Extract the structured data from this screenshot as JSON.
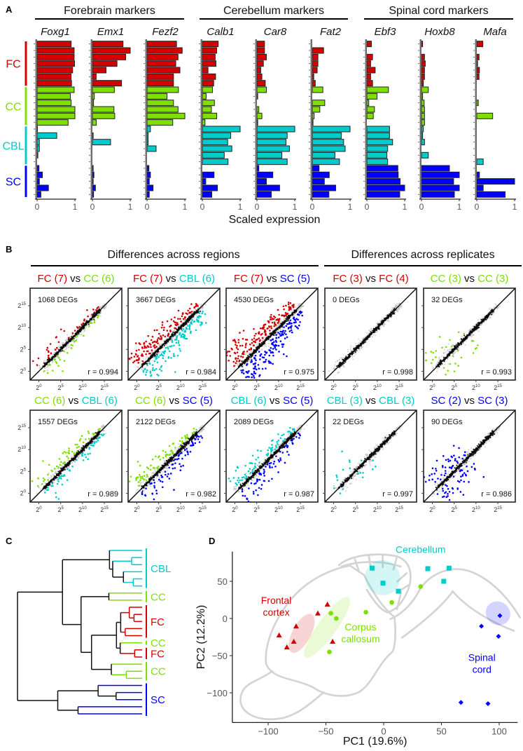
{
  "panel_labels": {
    "a": "A",
    "b": "B",
    "c": "C",
    "d": "D"
  },
  "colors": {
    "FC": "#d40000",
    "CC": "#7ee000",
    "CBL": "#00cccc",
    "SC": "#0000ff"
  },
  "chart_data": [
    {
      "type": "bar",
      "panel": "A",
      "xlabel": "Scaled expression",
      "xlim": [
        0,
        1
      ],
      "xticks": [
        "0",
        "1"
      ],
      "marker_groups": [
        {
          "title": "Forebrain markers",
          "genes": [
            0,
            1,
            2
          ]
        },
        {
          "title": "Cerebellum markers",
          "genes": [
            3,
            4,
            5
          ]
        },
        {
          "title": "Spinal cord markers",
          "genes": [
            6,
            7,
            8
          ]
        }
      ],
      "row_groups": [
        {
          "label": "FC",
          "n": 7
        },
        {
          "label": "CC",
          "n": 6
        },
        {
          "label": "CBL",
          "n": 6
        },
        {
          "label": "SC",
          "n": 5
        }
      ],
      "genes": [
        {
          "name": "Foxg1",
          "values": [
            0.9,
            0.98,
            0.98,
            0.99,
            0.94,
            0.9,
            0.91,
            0.98,
            0.88,
            0.9,
            1.0,
            1.0,
            0.82,
            0.01,
            0.52,
            0.06,
            0.06,
            0.02,
            0.0,
            0.05,
            0.14,
            0.06,
            0.3,
            0.1
          ]
        },
        {
          "name": "Emx1",
          "values": [
            0.81,
            1.0,
            0.88,
            0.65,
            0.36,
            0.1,
            0.77,
            0.58,
            0.05,
            0.03,
            0.57,
            0.59,
            0.1,
            0.0,
            0.02,
            0.48,
            0.0,
            0.0,
            0.0,
            0.02,
            0.04,
            0.02,
            0.08,
            0.03
          ]
        },
        {
          "name": "Fezf2",
          "values": [
            0.78,
            0.93,
            0.82,
            0.76,
            0.87,
            0.7,
            0.7,
            0.83,
            0.53,
            0.7,
            0.82,
            1.0,
            0.68,
            0.09,
            0.03,
            0.03,
            0.24,
            0.0,
            0.0,
            0.05,
            0.09,
            0.06,
            0.16,
            0.06
          ]
        },
        {
          "name": "Calb1",
          "values": [
            0.42,
            0.38,
            0.34,
            0.36,
            0.15,
            0.35,
            0.3,
            0.27,
            0.1,
            0.32,
            0.24,
            0.38,
            0.07,
            1.0,
            0.75,
            0.67,
            0.78,
            0.58,
            0.68,
            0.0,
            0.31,
            0.09,
            0.4,
            0.25
          ]
        },
        {
          "name": "Car8",
          "values": [
            0.2,
            0.2,
            0.25,
            0.17,
            0.1,
            0.13,
            0.22,
            0.25,
            0.02,
            0.0,
            0.05,
            0.13,
            0.02,
            1.0,
            0.8,
            0.77,
            0.86,
            0.66,
            0.8,
            0.05,
            0.42,
            0.25,
            0.6,
            0.38
          ]
        },
        {
          "name": "Fat2",
          "values": [
            0.0,
            0.3,
            0.15,
            0.15,
            0.13,
            0.04,
            0.08,
            0.28,
            0.0,
            0.33,
            0.2,
            0.05,
            0.02,
            1.0,
            0.77,
            0.83,
            0.87,
            0.6,
            0.72,
            0.18,
            0.45,
            0.32,
            0.62,
            0.44
          ]
        },
        {
          "name": "Ebf3",
          "values": [
            0.12,
            0.0,
            0.15,
            0.1,
            0.22,
            0.1,
            0.15,
            0.57,
            0.27,
            0.05,
            0.2,
            0.17,
            0.0,
            0.6,
            0.6,
            0.68,
            0.55,
            0.53,
            0.55,
            0.82,
            0.83,
            0.88,
            1.0,
            0.87
          ]
        },
        {
          "name": "Hoxb8",
          "values": [
            0.03,
            0.0,
            0.08,
            0.1,
            0.08,
            0.08,
            0.05,
            0.18,
            0.03,
            0.07,
            0.08,
            0.08,
            0.08,
            0.05,
            0.03,
            0.08,
            0.0,
            0.18,
            0.0,
            0.74,
            1.0,
            0.85,
            1.0,
            0.87
          ]
        },
        {
          "name": "Mafa",
          "values": [
            0.16,
            0.0,
            0.06,
            0.02,
            0.07,
            0.06,
            0.0,
            0.0,
            0.0,
            0.04,
            0.0,
            0.42,
            0.0,
            0.0,
            0.0,
            0.0,
            0.0,
            0.0,
            0.17,
            0.0,
            0.07,
            1.0,
            0.17,
            0.75
          ]
        }
      ]
    },
    {
      "type": "scatter",
      "panel": "B",
      "section_titles": [
        "Differences across regions",
        "Differences across replicates"
      ],
      "tick_base": "2",
      "tick_exponents": [
        "0",
        "5",
        "10",
        "15"
      ],
      "axis_range_log2": [
        -2,
        19
      ],
      "vs_label": " vs ",
      "comparisons": [
        {
          "a": "FC",
          "a_label": "FC (7)",
          "b": "CC",
          "b_label": "CC (6)",
          "degs": "1068 DEGs",
          "n_degs": 1068,
          "r": "r = 0.994",
          "kind": "regions"
        },
        {
          "a": "FC",
          "a_label": "FC (7)",
          "b": "CBL",
          "b_label": "CBL (6)",
          "degs": "3667 DEGs",
          "n_degs": 3667,
          "r": "r = 0.984",
          "kind": "regions"
        },
        {
          "a": "FC",
          "a_label": "FC (7)",
          "b": "SC",
          "b_label": "SC (5)",
          "degs": "4530 DEGs",
          "n_degs": 4530,
          "r": "r = 0.975",
          "kind": "regions"
        },
        {
          "a": "FC",
          "a_label": "FC (3)",
          "b": "FC",
          "b_label": "FC (4)",
          "degs": "0 DEGs",
          "n_degs": 0,
          "r": "r = 0.998",
          "kind": "replicates"
        },
        {
          "a": "CC",
          "a_label": "CC (3)",
          "b": "CC",
          "b_label": "CC (3)",
          "degs": "32 DEGs",
          "n_degs": 32,
          "r": "r = 0.993",
          "kind": "replicates"
        },
        {
          "a": "CC",
          "a_label": "CC (6)",
          "b": "CBL",
          "b_label": "CBL (6)",
          "degs": "1557 DEGs",
          "n_degs": 1557,
          "r": "r = 0.989",
          "kind": "regions"
        },
        {
          "a": "CC",
          "a_label": "CC (6)",
          "b": "SC",
          "b_label": "SC (5)",
          "degs": "2122 DEGs",
          "n_degs": 2122,
          "r": "r = 0.982",
          "kind": "regions"
        },
        {
          "a": "CBL",
          "a_label": "CBL (6)",
          "b": "SC",
          "b_label": "SC (5)",
          "degs": "2089 DEGs",
          "n_degs": 2089,
          "r": "r = 0.987",
          "kind": "regions"
        },
        {
          "a": "CBL",
          "a_label": "CBL (3)",
          "b": "CBL",
          "b_label": "CBL (3)",
          "degs": "22 DEGs",
          "n_degs": 22,
          "r": "r = 0.997",
          "kind": "replicates"
        },
        {
          "a": "SC",
          "a_label": "SC (2)",
          "b": "SC",
          "b_label": "SC (3)",
          "degs": "90 DEGs",
          "n_degs": 90,
          "r": "r = 0.986",
          "kind": "replicates"
        }
      ]
    },
    {
      "type": "dendrogram",
      "panel": "C",
      "tree": [
        1.0,
        [
          0.639,
          [
            0.262,
            "CBL",
            [
              0.236,
              [
                0.084,
                "CBL",
                "CBL"
              ],
              [
                0.15,
                "CBL",
                [
                  0.071,
                  "CBL",
                  "CBL"
                ]
              ]
            ]
          ],
          [
            0.49,
            [
              0.267,
              "CC",
              "CC"
            ],
            [
              0.406,
              [
                0.206,
                [
                  0.172,
                  [
                    0.103,
                    "FC",
                    [
                      0.065,
                      "FC",
                      "FC"
                    ]
                  ],
                  [
                    0.136,
                    "FC",
                    "FC"
                  ]
                ],
                [
                  0.176,
                  "CC",
                  [
                    0.06,
                    "FC",
                    "FC"
                  ]
                ]
              ],
              [
                0.247,
                "CC",
                [
                  0.127,
                  "CC",
                  "CC"
                ]
              ]
            ]
          ]
        ],
        [
          0.677,
          [
            0.353,
            "SC",
            [
              0.209,
              "SC",
              "SC"
            ]
          ],
          [
            0.514,
            "SC",
            "SC"
          ]
        ]
      ],
      "cluster_labels": [
        {
          "label": "CBL",
          "group": "CBL",
          "leaves": [
            0,
            5
          ]
        },
        {
          "label": "CC",
          "group": "CC",
          "leaves": [
            6,
            7
          ]
        },
        {
          "label": "FC",
          "group": "FC",
          "leaves": [
            8,
            12
          ]
        },
        {
          "label": "CC",
          "group": "CC",
          "leaves": [
            13,
            13
          ]
        },
        {
          "label": "FC",
          "group": "FC",
          "leaves": [
            14,
            15
          ]
        },
        {
          "label": "CC",
          "group": "CC",
          "leaves": [
            16,
            18
          ]
        },
        {
          "label": "SC",
          "group": "SC",
          "leaves": [
            19,
            23
          ]
        }
      ]
    },
    {
      "type": "scatter",
      "panel": "D",
      "xlabel": "PC1 (19.6%)",
      "ylabel": "PC2 (12.2%)",
      "xlim": [
        -131,
        116
      ],
      "ylim": [
        -140,
        90
      ],
      "xticks": [
        -100,
        -50,
        0,
        50,
        100
      ],
      "yticks": [
        -100,
        -50,
        0,
        50
      ],
      "xtick_labels": [
        "−100",
        "−50",
        "0",
        "50",
        "100"
      ],
      "ytick_labels": [
        "−100",
        "−50",
        "0",
        "50"
      ],
      "region_labels": [
        {
          "group": "FC",
          "lines": [
            "Frontal",
            "cortex"
          ],
          "pc1": -93,
          "pc2": 20
        },
        {
          "group": "CC",
          "lines": [
            "Corpus",
            "callosum"
          ],
          "pc1": -20,
          "pc2": -16
        },
        {
          "group": "CBL",
          "lines": [
            "Cerebellum"
          ],
          "pc1": 32,
          "pc2": 88
        },
        {
          "group": "SC",
          "lines": [
            "Spinal",
            "cord"
          ],
          "pc1": 85,
          "pc2": -57
        }
      ],
      "ellipses": [
        {
          "group": "FC",
          "pc1": -71,
          "pc2": -20,
          "r1": 8,
          "r2": 29,
          "angle": 28
        },
        {
          "group": "CC",
          "pc1": -49,
          "pc2": -12,
          "r1": 8,
          "r2": 50,
          "angle": 36
        },
        {
          "group": "CBL",
          "pc1": -1,
          "pc2": 55,
          "r1": 15,
          "r2": 24,
          "angle": -50
        },
        {
          "group": "SC",
          "pc1": 99,
          "pc2": 7,
          "r1": 10,
          "r2": 17,
          "angle": -55
        }
      ],
      "points": [
        {
          "group": "FC",
          "marker": "triangle",
          "pc1": -48.7,
          "pc2": 19
        },
        {
          "group": "FC",
          "marker": "triangle",
          "pc1": -57,
          "pc2": 7
        },
        {
          "group": "FC",
          "marker": "triangle",
          "pc1": -75.8,
          "pc2": -10.4
        },
        {
          "group": "FC",
          "marker": "triangle",
          "pc1": -90.5,
          "pc2": -22.5
        },
        {
          "group": "FC",
          "marker": "triangle",
          "pc1": -77.8,
          "pc2": -31
        },
        {
          "group": "FC",
          "marker": "triangle",
          "pc1": -83.8,
          "pc2": -38.6
        },
        {
          "group": "FC",
          "marker": "triangle",
          "pc1": -44.2,
          "pc2": -31
        },
        {
          "group": "CC",
          "marker": "circle",
          "pc1": -45.7,
          "pc2": 7
        },
        {
          "group": "CC",
          "marker": "circle",
          "pc1": -41,
          "pc2": 0
        },
        {
          "group": "CC",
          "marker": "circle",
          "pc1": -15.4,
          "pc2": 8.5
        },
        {
          "group": "CC",
          "marker": "circle",
          "pc1": 7,
          "pc2": 21.5
        },
        {
          "group": "CC",
          "marker": "circle",
          "pc1": 32,
          "pc2": 43
        },
        {
          "group": "CC",
          "marker": "circle",
          "pc1": -47,
          "pc2": -45
        },
        {
          "group": "CBL",
          "marker": "square",
          "pc1": -10,
          "pc2": 67.7
        },
        {
          "group": "CBL",
          "marker": "square",
          "pc1": -0.6,
          "pc2": 47.5
        },
        {
          "group": "CBL",
          "marker": "square",
          "pc1": 12.7,
          "pc2": 36.7
        },
        {
          "group": "CBL",
          "marker": "square",
          "pc1": 38.2,
          "pc2": 67
        },
        {
          "group": "CBL",
          "marker": "square",
          "pc1": 56.6,
          "pc2": 67.7
        },
        {
          "group": "CBL",
          "marker": "square",
          "pc1": 52,
          "pc2": 50
        },
        {
          "group": "SC",
          "marker": "diamond",
          "pc1": 100.6,
          "pc2": 3.8
        },
        {
          "group": "SC",
          "marker": "diamond",
          "pc1": 84.6,
          "pc2": -10.4
        },
        {
          "group": "SC",
          "marker": "diamond",
          "pc1": 99.4,
          "pc2": -24
        },
        {
          "group": "SC",
          "marker": "diamond",
          "pc1": 66.9,
          "pc2": -113
        },
        {
          "group": "SC",
          "marker": "diamond",
          "pc1": 90.3,
          "pc2": -114.6
        }
      ]
    }
  ]
}
